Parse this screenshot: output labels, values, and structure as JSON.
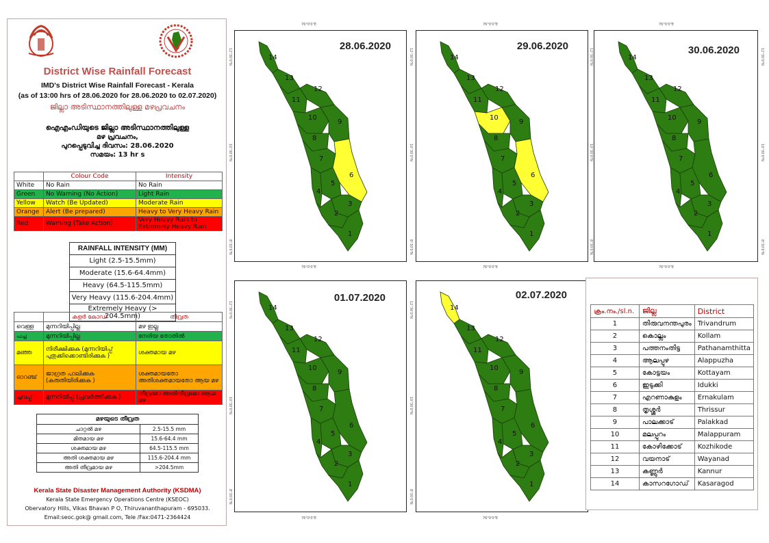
{
  "header": {
    "title": "District Wise Rainfall Forecast",
    "subtitle1": "IMD's District Wise Rainfall Forecast - Kerala",
    "subtitle2": "(as of 13:00 hrs of 28.06.2020  for 28.06.2020  to 02.07.2020)",
    "ml_title": "ജില്ലാ അടിസ്ഥാനത്തിലുള്ള മഴപ്രവചനം",
    "ml_line1": "ഐഎംഡിയുടെ ജില്ലാ   അടിസ്ഥാനത്തിലുള്ള",
    "ml_line2": "മഴ പ്രവചനം,",
    "ml_line3": "പുറപ്പെടുവിച്ച     ദിവസം: 28.06.2020",
    "ml_line4": "സമയം: 13 hr s"
  },
  "colors": {
    "green": "#2e7d12",
    "green_legend": "#22b14c",
    "yellow": "#ffff00",
    "map_yellow": "#ffff33",
    "orange": "#ffa500",
    "red": "#ff0000",
    "title_red": "#c0504d"
  },
  "legend_en": {
    "headers": [
      "Colour Code",
      "Intensity"
    ],
    "rows": [
      {
        "color": "White",
        "code": "No Rain",
        "intensity": "No Rain"
      },
      {
        "color": "Green",
        "code": "No Warning (No Action)",
        "intensity": "Light Rain"
      },
      {
        "color": "Yellow",
        "code": "Watch (Be Updated)",
        "intensity": "Moderate Rain"
      },
      {
        "color": "Orange",
        "code": "Alert (Be prepared)",
        "intensity": "Heavy to Very Heavy Rain"
      },
      {
        "color": "Red",
        "code": "Warning (Take Action)",
        "intensity": "Very Heavy Rain to Extremely Heavy Rain"
      }
    ]
  },
  "intensity_en": {
    "title": "RAINFALL INTENSITY (MM)",
    "rows": [
      "Light (2.5-15.5mm)",
      "Moderate (15.6-64.4mm)",
      "Heavy (64.5-115.5mm)",
      "Very Heavy (115.6-204.4mm)",
      "Extremely Heavy (> 204.5mm)"
    ]
  },
  "legend_ml": {
    "headers": [
      "കളർ കോഡ്",
      "തീവ്രത"
    ],
    "rows": [
      {
        "color": "വെള്ള",
        "code": "മുന്നറിയിപ്പില്ല",
        "intensity": "മഴ ഇല്ല"
      },
      {
        "color": "പച്ച",
        "code": "മുന്നറിയിപ്പില്ല",
        "intensity": "നേരിയ തോതിൽ"
      },
      {
        "color": "മഞ്ഞ",
        "code": "നിരീക്ഷിക്കുക (മുന്നറിയിപ്പ് പുതുക്കിക്കൊണ്ടിരിക്കുക )",
        "intensity": "ശക്തമായ മഴ"
      },
      {
        "color": "ഓറഞ്ച്",
        "code": "ജാഗ്രത പാലിക്കുക (കരുതിയിരിക്കുക )",
        "intensity": "ശക്തമായതോ അതിശക്തമായതോ ആയ മഴ"
      },
      {
        "color": "ചുവപ്പ്",
        "code": "മുന്നറിയിപ്പ് (പ്രവർത്തിക്കുക )",
        "intensity": "തീവ്രമോ അതിതീവ്രമോ ആയ മഴ"
      }
    ]
  },
  "intensity_ml": {
    "title": "മഴയുടെ  തീവ്രത",
    "rows": [
      {
        "label": "ചാറ്റൽ  മഴ",
        "value": "2.5-15.5 mm"
      },
      {
        "label": "മിതമായ  മഴ",
        "value": "15.6-64.4 mm"
      },
      {
        "label": "ശക്തമായ   മഴ",
        "value": "64.5-115.5 mm"
      },
      {
        "label": "അതി  ശക്തമായ  മഴ",
        "value": "115.6-204.4 mm"
      },
      {
        "label": "അതി  തീവ്രമായ  മഴ",
        "value": ">204.5mm"
      }
    ]
  },
  "footer": {
    "org": "Kerala State Disaster Management Authority (KSDMA)",
    "line2": "Kerala State Emergency Operations Centre (KSEOC)",
    "line3": "Obervatory Hills, Vikas Bhavan P O, Thiruvananthapuram - 695033.",
    "line4": "Email:seoc.gok@ gmail.com, Tele /Fax:0471-2364424"
  },
  "map_ticks": {
    "lon_top": "76°0'0\"E",
    "lon_bottom": "76°0'0\"E",
    "lat_1": "12°30'0\"N",
    "lat_2": "10°30'0\"N",
    "lat_3": "8°30'0\"N"
  },
  "maps": [
    {
      "date": "28.06.2020",
      "yellow": [
        6
      ]
    },
    {
      "date": "29.06.2020",
      "yellow": [
        6,
        10
      ]
    },
    {
      "date": "30.06.2020",
      "yellow": []
    },
    {
      "date": "01.07.2020",
      "yellow": []
    },
    {
      "date": "02.07.2020",
      "yellow": [
        14
      ]
    }
  ],
  "districts": {
    "headers": [
      "ക്രം.നം./sl.n.",
      "ജില്ല",
      "District"
    ],
    "rows": [
      {
        "n": "1",
        "ml": "തിരുവനന്തപുരം",
        "en": "Trivandrum"
      },
      {
        "n": "2",
        "ml": "കൊല്ലം",
        "en": "Kollam"
      },
      {
        "n": "3",
        "ml": "പത്തനംതിട്ട",
        "en": "Pathanamthitta"
      },
      {
        "n": "4",
        "ml": "ആലപ്പുഴ",
        "en": "Alappuzha"
      },
      {
        "n": "5",
        "ml": "കോട്ടയം",
        "en": "Kottayam"
      },
      {
        "n": "6",
        "ml": "ഇടുക്കി",
        "en": "Idukki"
      },
      {
        "n": "7",
        "ml": "എറണാകുളം",
        "en": "Ernakulam"
      },
      {
        "n": "8",
        "ml": "തൃശ്ശൂർ",
        "en": "Thrissur"
      },
      {
        "n": "9",
        "ml": "പാലക്കാട്",
        "en": "Palakkad"
      },
      {
        "n": "10",
        "ml": "മലപ്പുറം",
        "en": "Malappuram"
      },
      {
        "n": "11",
        "ml": "കോഴിക്കോട്",
        "en": "Kozhikode"
      },
      {
        "n": "12",
        "ml": "വയനാട്",
        "en": "Wayanad"
      },
      {
        "n": "13",
        "ml": "കണ്ണൂർ",
        "en": "Kannur"
      },
      {
        "n": "14",
        "ml": "കാസറഗോഡ്",
        "en": "Kasaragod"
      }
    ]
  }
}
